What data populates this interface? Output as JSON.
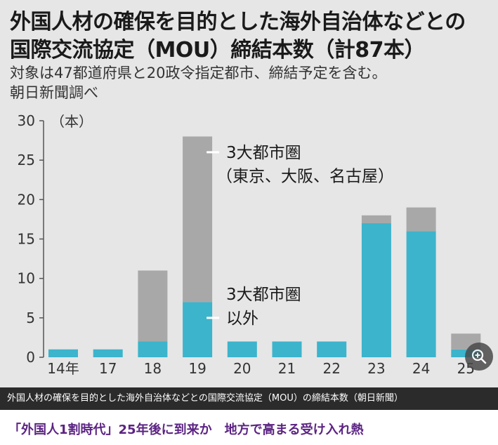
{
  "figure": {
    "title_line1": "外国人材の確保を目的とした海外自治体などとの",
    "title_line2": "国際交流協定（MOU）締結本数（計87本）",
    "subtitle_line1": "対象は47都道府県と20政令指定都市、締結予定を含む。",
    "subtitle_line2": "朝日新聞調べ"
  },
  "chart_data": {
    "type": "bar",
    "stacked": true,
    "categories": [
      "14年",
      "17",
      "18",
      "19",
      "20",
      "21",
      "22",
      "23",
      "24",
      "25"
    ],
    "series": [
      {
        "name": "3大都市圏以外",
        "values": [
          1,
          1,
          2,
          7,
          2,
          2,
          2,
          17,
          16,
          1
        ],
        "color": "#3cb4cc"
      },
      {
        "name": "3大都市圏（東京、大阪、名古屋）",
        "values": [
          0,
          0,
          9,
          21,
          0,
          0,
          0,
          1,
          3,
          2
        ],
        "color": "#a8a8a8"
      }
    ],
    "yticks": [
      0,
      5,
      10,
      15,
      20,
      25,
      30
    ],
    "yunit": "（本）",
    "ylim": [
      0,
      30
    ],
    "annotations": {
      "metro_line1": "3大都市圏",
      "metro_line2": "（東京、大阪、名古屋）",
      "other_line1": "3大都市圏",
      "other_line2": "以外"
    }
  },
  "caption": "外国人材の確保を目的とした海外自治体などとの国際交流協定（MOU）の締結本数（朝日新聞）",
  "headline": "「外国人1割時代」25年後に到来か　地方で高まる受け入れ熱",
  "icons": {
    "zoom": "zoom-in-icon"
  }
}
